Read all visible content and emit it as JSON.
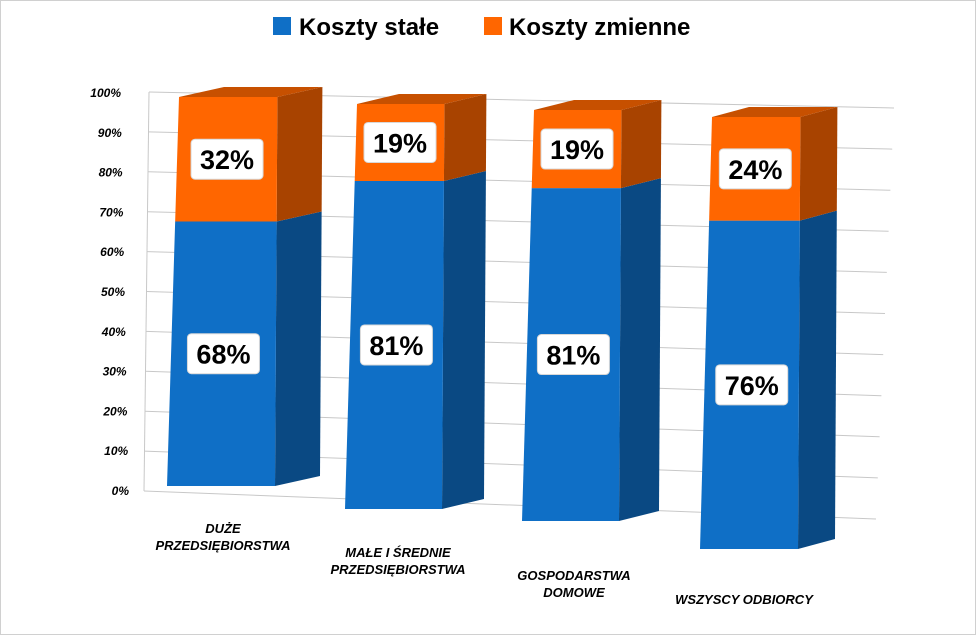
{
  "chart_data": {
    "type": "bar",
    "stacked": true,
    "three_d": true,
    "categories": [
      [
        "DUŻE",
        "PRZEDSIĘBIORSTWA"
      ],
      [
        "MAŁE I ŚREDNIE",
        "PRZEDSIĘBIORSTWA"
      ],
      [
        "GOSPODARSTWA",
        "DOMOWE"
      ],
      [
        "WSZYSCY ODBIORCY"
      ]
    ],
    "series": [
      {
        "name": "Koszty stałe",
        "color": "#0f6fc6",
        "values": [
          68,
          81,
          81,
          76
        ],
        "labels": [
          "68%",
          "81%",
          "81%",
          "76%"
        ]
      },
      {
        "name": "Koszty zmienne",
        "color": "#ff6600",
        "values": [
          32,
          19,
          19,
          24
        ],
        "labels": [
          "32%",
          "19%",
          "19%",
          "24%"
        ]
      }
    ],
    "yticks": [
      "0%",
      "10%",
      "20%",
      "30%",
      "40%",
      "50%",
      "60%",
      "70%",
      "80%",
      "90%",
      "100%"
    ],
    "ylim": [
      0,
      100
    ],
    "grid": true,
    "legend_position": "top"
  }
}
